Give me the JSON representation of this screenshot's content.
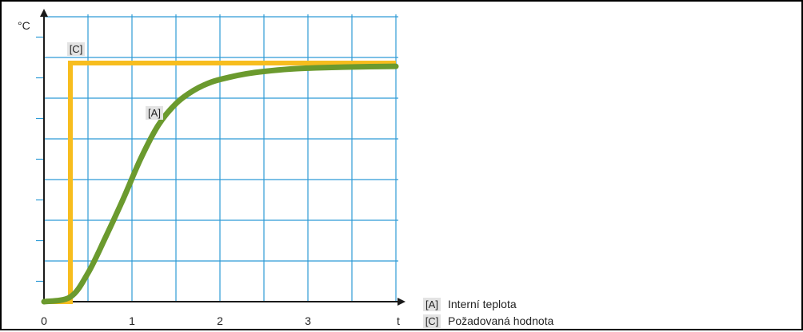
{
  "chart_data": {
    "type": "line",
    "ylabel": "°C",
    "xlabel": "t",
    "xlim": [
      0,
      4
    ],
    "x_ticks": [
      "0",
      "1",
      "2",
      "3"
    ],
    "grid": true,
    "legend_position": "bottom-right",
    "series": [
      {
        "name": "Interní teplota",
        "tag": "[A]",
        "color": "#6b9a2e",
        "x": [
          0,
          0.3,
          0.5,
          0.7,
          0.9,
          1.1,
          1.3,
          1.5,
          1.7,
          1.9,
          2.1,
          2.3,
          2.5,
          2.8,
          3.1,
          3.4,
          3.7,
          4.0
        ],
        "y": [
          0,
          0.02,
          0.12,
          0.27,
          0.43,
          0.6,
          0.74,
          0.83,
          0.885,
          0.92,
          0.94,
          0.955,
          0.965,
          0.975,
          0.98,
          0.983,
          0.985,
          0.986
        ]
      },
      {
        "name": "Požadovaná hodnota",
        "tag": "[C]",
        "color": "#f7bd1e",
        "x": [
          0,
          0.3,
          0.3,
          4.0
        ],
        "y": [
          0,
          0,
          1,
          1
        ]
      }
    ]
  }
}
